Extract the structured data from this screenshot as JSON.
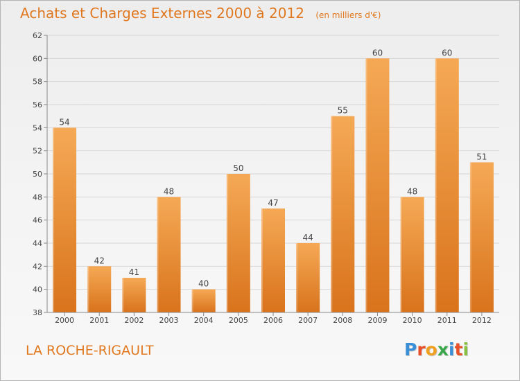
{
  "title": {
    "main": "Achats et Charges Externes 2000 à 2012",
    "unit": "(en milliers d'€)"
  },
  "commune": "LA ROCHE-RIGAULT",
  "logo": {
    "text": "Proxiti",
    "letters": [
      {
        "ch": "P",
        "color": "#3a8fd6"
      },
      {
        "ch": "r",
        "color": "#e8502a"
      },
      {
        "ch": "o",
        "color": "#f0a020"
      },
      {
        "ch": "x",
        "color": "#3aa84a"
      },
      {
        "ch": "i",
        "color": "#3a8fd6"
      },
      {
        "ch": "t",
        "color": "#e8502a"
      },
      {
        "ch": "i",
        "color": "#8ac040"
      }
    ]
  },
  "colors": {
    "bar_top": "#f5a955",
    "bar_bottom": "#d9731c",
    "grid": "#d6d6d6",
    "axis_text": "#444444",
    "label_text": "#444444",
    "accent": "#e07820"
  },
  "chart_data": {
    "type": "bar",
    "categories": [
      "2000",
      "2001",
      "2002",
      "2003",
      "2004",
      "2005",
      "2006",
      "2007",
      "2008",
      "2009",
      "2010",
      "2011",
      "2012"
    ],
    "values": [
      54,
      42,
      41,
      48,
      40,
      50,
      47,
      44,
      55,
      60,
      48,
      60,
      51
    ],
    "title": "Achats et Charges Externes 2000 à 2012",
    "ylim": [
      38,
      62
    ],
    "yticks": [
      38,
      40,
      42,
      44,
      46,
      48,
      50,
      52,
      54,
      56,
      58,
      60,
      62
    ],
    "grid": true,
    "data_labels": true
  }
}
